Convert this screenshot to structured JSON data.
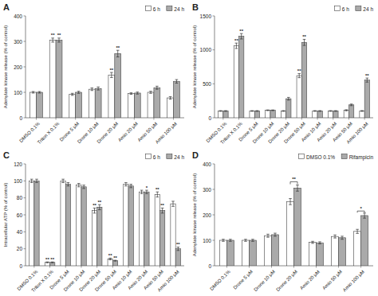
{
  "chart_data": [
    {
      "type": "bar",
      "title": "A",
      "ylabel": "Adenylate kinase release (% of control)",
      "ylim": [
        0,
        400
      ],
      "yticks": [
        0,
        100,
        200,
        300,
        400
      ],
      "grid": false,
      "legend": "upper right",
      "categories": [
        "DMSO 0.1%",
        "Triton X 0.1%",
        "Drone 5 μM",
        "Drone 10 μM",
        "Drone 20 μM",
        "Amio 20 μM",
        "Amio 50 μM",
        "Amio 100 μM"
      ],
      "series": [
        {
          "name": "6 h",
          "color": "#ffffff",
          "values": [
            100,
            305,
            92,
            112,
            168,
            95,
            100,
            78
          ],
          "errors": [
            3,
            8,
            4,
            5,
            10,
            3,
            4,
            5
          ],
          "annotations": [
            null,
            "**",
            null,
            null,
            "**",
            null,
            null,
            null
          ]
        },
        {
          "name": "24 h",
          "color": "#aaaaaa",
          "values": [
            100,
            305,
            100,
            115,
            252,
            97,
            118,
            143
          ],
          "errors": [
            3,
            8,
            4,
            6,
            13,
            4,
            6,
            7
          ],
          "annotations": [
            null,
            "**",
            null,
            null,
            "**",
            null,
            null,
            null
          ]
        }
      ]
    },
    {
      "type": "bar",
      "title": "B",
      "ylabel": "Adenylate kinase release (% of control)",
      "ylim": [
        0,
        1500
      ],
      "yticks": [
        0,
        500,
        1000,
        1500
      ],
      "grid": false,
      "legend": "upper right",
      "categories": [
        "DMSO 0.1%",
        "Triton X 0.1%",
        "Drone 5 μM",
        "Drone 10 μM",
        "Drone 20 μM",
        "Drone 50 μM",
        "Amio 10 μM",
        "Amio 20 μM",
        "Amio 50 μM",
        "Amio 100 μM"
      ],
      "series": [
        {
          "name": "6 h",
          "color": "#ffffff",
          "values": [
            100,
            1060,
            100,
            110,
            100,
            620,
            100,
            100,
            110,
            100
          ],
          "errors": [
            5,
            40,
            5,
            5,
            5,
            30,
            5,
            5,
            8,
            6
          ],
          "annotations": [
            null,
            "**",
            null,
            null,
            null,
            "**",
            null,
            null,
            null,
            null
          ]
        },
        {
          "name": "24 h",
          "color": "#aaaaaa",
          "values": [
            100,
            1200,
            100,
            110,
            280,
            1110,
            100,
            100,
            190,
            555
          ],
          "errors": [
            5,
            40,
            5,
            5,
            20,
            45,
            5,
            5,
            12,
            30
          ],
          "annotations": [
            null,
            "**",
            null,
            null,
            null,
            "**",
            null,
            null,
            null,
            "**"
          ]
        }
      ]
    },
    {
      "type": "bar",
      "title": "C",
      "ylabel": "Intracellular ATP (% of control)",
      "ylim": [
        0,
        120
      ],
      "yticks": [
        0,
        20,
        40,
        60,
        80,
        100,
        120
      ],
      "grid": false,
      "legend": "upper right",
      "categories": [
        "DMSO 0.1%",
        "Triton X 0.1%",
        "Drone 5 μM",
        "Drone 10 μM",
        "Drone 20 μM",
        "Drone 50 μM",
        "Amio 10 μM",
        "Amio 20 μM",
        "Amio 50 μM",
        "Amio 100 μM"
      ],
      "series": [
        {
          "name": "6 h",
          "color": "#ffffff",
          "values": [
            100,
            4,
            100,
            95,
            65,
            8,
            96,
            87,
            84,
            73
          ],
          "errors": [
            2,
            0.5,
            2,
            2,
            3,
            1,
            2,
            2,
            3,
            3
          ],
          "annotations": [
            null,
            "**",
            null,
            null,
            "**",
            "**",
            null,
            null,
            "**",
            null
          ]
        },
        {
          "name": "24 h",
          "color": "#aaaaaa",
          "values": [
            100,
            4,
            96,
            93,
            69,
            6,
            94,
            87,
            65,
            20
          ],
          "errors": [
            2,
            0.5,
            2,
            2,
            3,
            0.5,
            2,
            2,
            3,
            2
          ],
          "annotations": [
            null,
            "**",
            null,
            null,
            "**",
            "**",
            null,
            "*",
            "**",
            "**"
          ]
        }
      ]
    },
    {
      "type": "bar",
      "title": "D",
      "ylabel": "Adenylate kinase release (% of control)",
      "ylim": [
        0,
        400
      ],
      "yticks": [
        0,
        100,
        200,
        300,
        400
      ],
      "grid": false,
      "legend": "upper right",
      "categories": [
        "DMSO 0.1%",
        "Drone 5 μM",
        "Drone 10 μM",
        "Drone 20 μM",
        "Amio 20 μM",
        "Amio 50 μM",
        "Amio 100 μM"
      ],
      "series": [
        {
          "name": "DMSO 0.1%",
          "color": "#ffffff",
          "values": [
            100,
            100,
            118,
            252,
            92,
            115,
            135
          ],
          "errors": [
            4,
            4,
            6,
            12,
            4,
            6,
            8
          ]
        },
        {
          "name": "Rifampicin",
          "color": "#aaaaaa",
          "values": [
            100,
            100,
            122,
            305,
            90,
            110,
            197
          ],
          "errors": [
            4,
            4,
            6,
            12,
            4,
            6,
            10
          ]
        }
      ],
      "annotations": [
        {
          "category": "Drone 20 μM",
          "y": 330,
          "text": "**"
        },
        {
          "category": "Amio 100 μM",
          "y": 215,
          "text": "*"
        }
      ]
    }
  ]
}
